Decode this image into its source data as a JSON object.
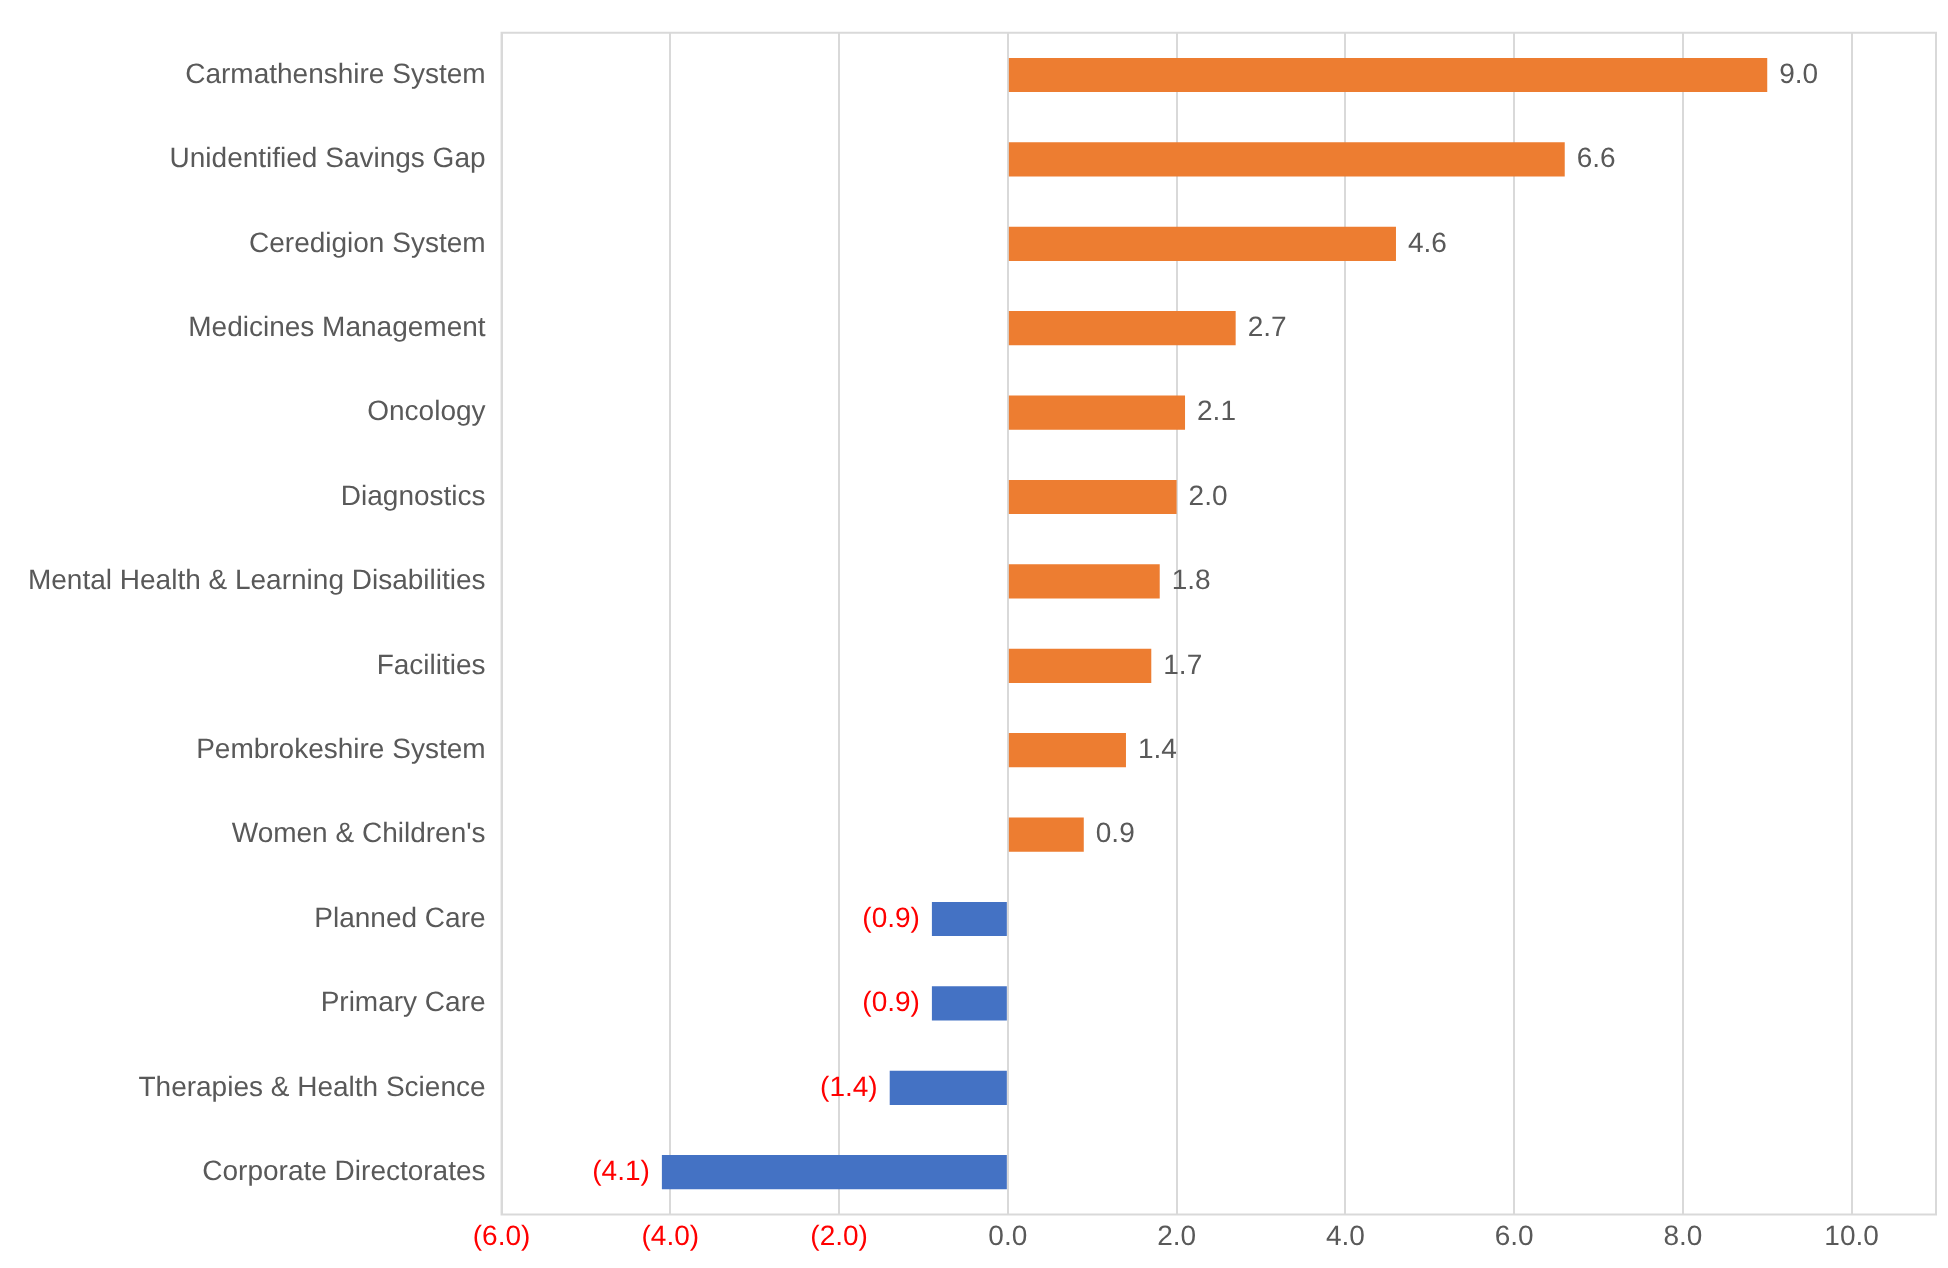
{
  "chart_data": {
    "type": "bar",
    "orientation": "horizontal",
    "categories": [
      "Carmathenshire System",
      "Unidentified Savings Gap",
      "Ceredigion System",
      "Medicines Management",
      "Oncology",
      "Diagnostics",
      "Mental Health & Learning Disabilities",
      "Facilities",
      "Pembrokeshire System",
      "Women & Children's",
      "Planned Care",
      "Primary Care",
      "Therapies & Health Science",
      "Corporate Directorates"
    ],
    "values": [
      9.0,
      6.6,
      4.6,
      2.7,
      2.1,
      2.0,
      1.8,
      1.7,
      1.4,
      0.9,
      -0.9,
      -0.9,
      -1.4,
      -4.1
    ],
    "value_labels": [
      "9.0",
      "6.6",
      "4.6",
      "2.7",
      "2.1",
      "2.0",
      "1.8",
      "1.7",
      "1.4",
      "0.9",
      "(0.9)",
      "(0.9)",
      "(1.4)",
      "(4.1)"
    ],
    "colors": [
      "#ed7d31",
      "#ed7d31",
      "#ed7d31",
      "#ed7d31",
      "#ed7d31",
      "#ed7d31",
      "#ed7d31",
      "#ed7d31",
      "#ed7d31",
      "#ed7d31",
      "#4472c4",
      "#4472c4",
      "#4472c4",
      "#4472c4"
    ],
    "xlim": [
      -6,
      11
    ],
    "xticks": [
      {
        "value": -6,
        "label": "(6.0)"
      },
      {
        "value": -4,
        "label": "(4.0)"
      },
      {
        "value": -2,
        "label": "(2.0)"
      },
      {
        "value": 0,
        "label": "0.0"
      },
      {
        "value": 2,
        "label": "2.0"
      },
      {
        "value": 4,
        "label": "4.0"
      },
      {
        "value": 6,
        "label": "6.0"
      },
      {
        "value": 8,
        "label": "8.0"
      },
      {
        "value": 10,
        "label": "10.0"
      }
    ],
    "grid": "x",
    "legend": false
  }
}
